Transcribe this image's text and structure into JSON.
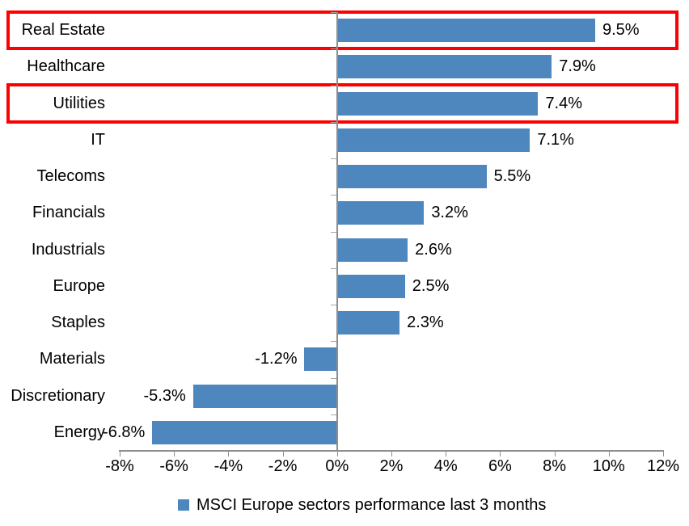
{
  "chart_data": {
    "type": "bar",
    "orientation": "horizontal",
    "title": "",
    "categories": [
      "Real Estate",
      "Healthcare",
      "Utilities",
      "IT",
      "Telecoms",
      "Financials",
      "Industrials",
      "Europe",
      "Staples",
      "Materials",
      "Discretionary",
      "Energy"
    ],
    "values": [
      9.5,
      7.9,
      7.4,
      7.1,
      5.5,
      3.2,
      2.6,
      2.5,
      2.3,
      -1.2,
      -5.3,
      -6.8
    ],
    "data_labels": [
      "9.5%",
      "7.9%",
      "7.4%",
      "7.1%",
      "5.5%",
      "3.2%",
      "2.6%",
      "2.5%",
      "2.3%",
      "-1.2%",
      "-5.3%",
      "-6.8%"
    ],
    "x_axis": {
      "tick_values": [
        -8,
        -6,
        -4,
        -2,
        0,
        2,
        4,
        6,
        8,
        10,
        12
      ],
      "tick_labels": [
        "-8%",
        "-6%",
        "-4%",
        "-2%",
        "0%",
        "2%",
        "4%",
        "6%",
        "8%",
        "10%",
        "12%"
      ],
      "min": -8,
      "max": 12
    },
    "legend": {
      "label": "MSCI Europe sectors performance last 3 months",
      "position": "bottom"
    },
    "highlighted_categories": [
      "Real Estate",
      "Utilities"
    ],
    "colors": {
      "bar": "#4E87BE",
      "highlight_border": "#FF0000",
      "axis_line": "#8E8E8E",
      "axis_tick": "#A6A6A6",
      "text": "#000000",
      "background": "#FFFFFF"
    },
    "grid": false
  }
}
